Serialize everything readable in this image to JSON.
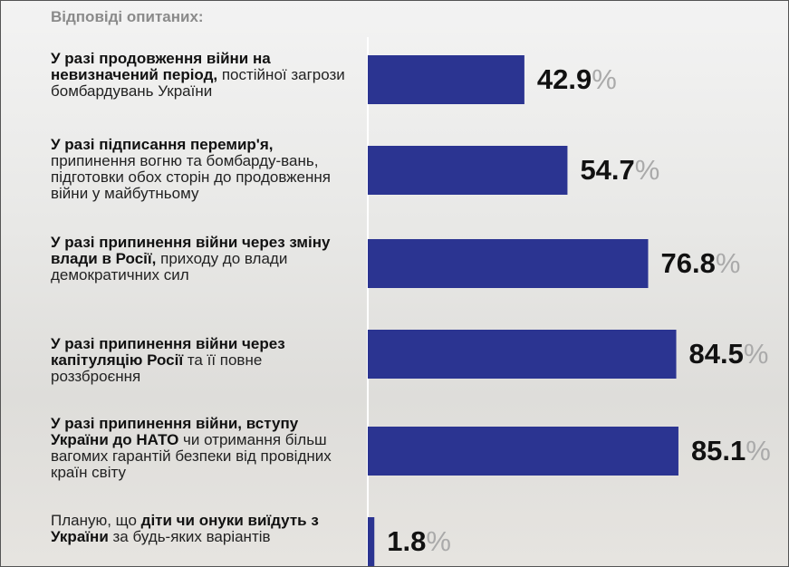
{
  "chart_data": {
    "type": "bar",
    "orientation": "horizontal",
    "title": "Відповіді опитаних:",
    "categories": [
      [
        {
          "text": "У разі продовження війни на невизначений період,",
          "bold": true
        },
        {
          "text": " постійної загрози бомбардувань України",
          "bold": false
        }
      ],
      [
        {
          "text": "У разі підписання перемир'я,",
          "bold": true
        },
        {
          "text": " припинення вогню та бомбарду-вань, підготовки обох сторін до продовження війни у майбутньому",
          "bold": false
        }
      ],
      [
        {
          "text": "У разі припинення війни через зміну влади в Росії,",
          "bold": true
        },
        {
          "text": " приходу до влади демократичних сил",
          "bold": false
        }
      ],
      [
        {
          "text": "У разі припинення війни через капітуляцію Росії",
          "bold": true
        },
        {
          "text": " та її повне роззброєння",
          "bold": false
        }
      ],
      [
        {
          "text": "У разі припинення війни, вступу України до НАТО",
          "bold": true
        },
        {
          "text": " чи отримання більш вагомих гарантій безпеки від провідних країн світу",
          "bold": false
        }
      ],
      [
        {
          "text": "Планую, що ",
          "bold": false
        },
        {
          "text": "діти чи онуки виїдуть з України",
          "bold": true
        },
        {
          "text": " за будь-яких варіантів",
          "bold": false
        }
      ]
    ],
    "values": [
      42.9,
      54.7,
      76.8,
      84.5,
      85.1,
      1.8
    ],
    "value_labels": [
      "42.9%",
      "54.7%",
      "76.8%",
      "84.5%",
      "85.1%",
      "1.8%"
    ],
    "color": "#2b3491",
    "xlim": [
      0,
      100
    ]
  }
}
